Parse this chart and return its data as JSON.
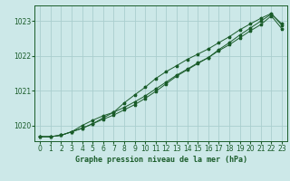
{
  "title": "Graphe pression niveau de la mer (hPa)",
  "bg_color": "#cce8e8",
  "grid_color": "#aacece",
  "line_color": "#1a5c2a",
  "xlim": [
    -0.5,
    23.5
  ],
  "ylim": [
    1019.55,
    1023.45
  ],
  "yticks": [
    1020,
    1021,
    1022,
    1023
  ],
  "xticks": [
    0,
    1,
    2,
    3,
    4,
    5,
    6,
    7,
    8,
    9,
    10,
    11,
    12,
    13,
    14,
    15,
    16,
    17,
    18,
    19,
    20,
    21,
    22,
    23
  ],
  "series": [
    [
      1019.68,
      1019.68,
      1019.72,
      1019.82,
      1019.92,
      1020.05,
      1020.22,
      1020.38,
      1020.52,
      1020.68,
      1020.85,
      1021.05,
      1021.25,
      1021.45,
      1021.62,
      1021.8,
      1021.95,
      1022.15,
      1022.32,
      1022.52,
      1022.72,
      1022.9,
      1023.15,
      1022.78
    ],
    [
      1019.68,
      1019.68,
      1019.72,
      1019.82,
      1020.0,
      1020.15,
      1020.28,
      1020.38,
      1020.65,
      1020.88,
      1021.1,
      1021.35,
      1021.55,
      1021.72,
      1021.9,
      1022.05,
      1022.2,
      1022.38,
      1022.55,
      1022.75,
      1022.92,
      1023.08,
      1023.22,
      1022.88
    ],
    [
      1019.68,
      1019.68,
      1019.72,
      1019.82,
      1019.92,
      1020.05,
      1020.18,
      1020.3,
      1020.45,
      1020.6,
      1020.78,
      1020.98,
      1021.2,
      1021.42,
      1021.6,
      1021.78,
      1021.95,
      1022.18,
      1022.38,
      1022.6,
      1022.8,
      1023.0,
      1023.2,
      1022.92
    ]
  ]
}
